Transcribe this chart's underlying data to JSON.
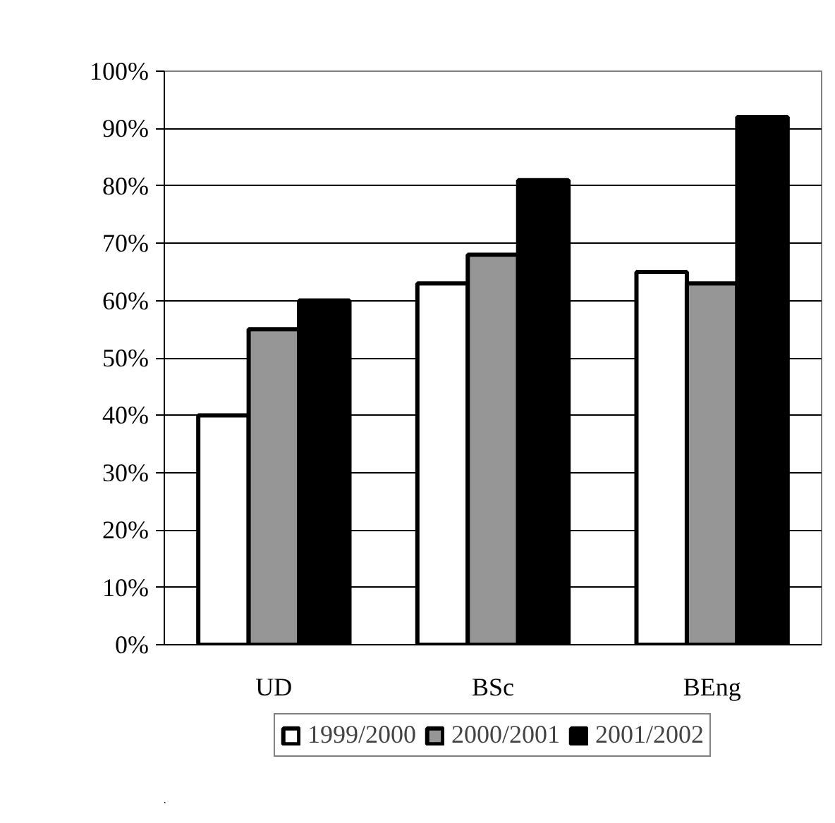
{
  "chart_data": {
    "type": "bar",
    "categories": [
      "UD",
      "BSc",
      "BEng"
    ],
    "series": [
      {
        "name": "1999/2000",
        "color": "#ffffff",
        "values": [
          40,
          63,
          65
        ]
      },
      {
        "name": "2000/2001",
        "color": "#969696",
        "values": [
          55,
          68,
          63
        ]
      },
      {
        "name": "2001/2002",
        "color": "#000000",
        "values": [
          60,
          81,
          92
        ]
      }
    ],
    "ylim": [
      0,
      100
    ],
    "yticks": [
      {
        "value": 0,
        "label": "0%"
      },
      {
        "value": 10,
        "label": "10%"
      },
      {
        "value": 20,
        "label": "20%"
      },
      {
        "value": 30,
        "label": "30%"
      },
      {
        "value": 40,
        "label": "40%"
      },
      {
        "value": 50,
        "label": "50%"
      },
      {
        "value": 60,
        "label": "60%"
      },
      {
        "value": 70,
        "label": "70%"
      },
      {
        "value": 80,
        "label": "80%"
      },
      {
        "value": 90,
        "label": "90%"
      },
      {
        "value": 100,
        "label": "100%"
      }
    ],
    "grid": "y",
    "legend": "bottom"
  }
}
